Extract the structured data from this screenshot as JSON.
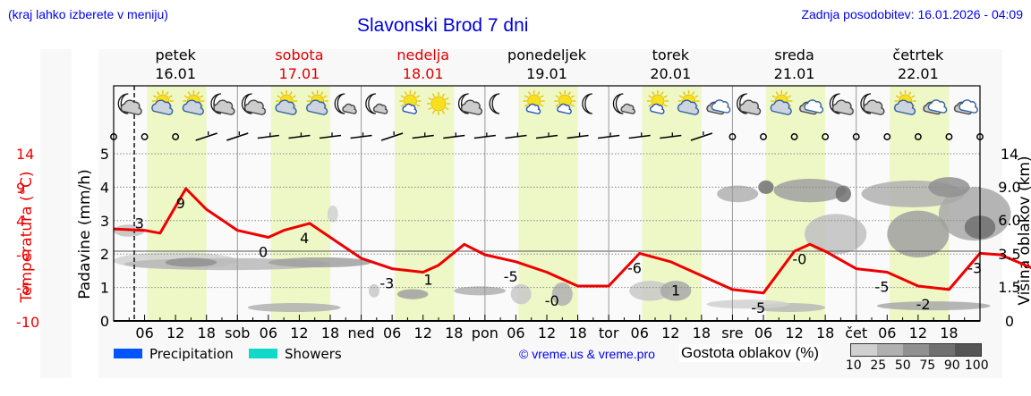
{
  "header": {
    "region_hint": "(kraj lahko izberete v meniju)",
    "title": "Slavonski Brod 7 dni",
    "last_update": "Zadnja posodobitev: 16.01.2026 - 04:09"
  },
  "days": [
    {
      "name": "petek",
      "date": "16.01",
      "weekend": false,
      "short": ""
    },
    {
      "name": "sobota",
      "date": "17.01",
      "weekend": true,
      "short": "sob"
    },
    {
      "name": "nedelja",
      "date": "18.01",
      "weekend": true,
      "short": "ned"
    },
    {
      "name": "ponedeljek",
      "date": "19.01",
      "weekend": false,
      "short": "pon"
    },
    {
      "name": "torek",
      "date": "20.01",
      "weekend": false,
      "short": "tor"
    },
    {
      "name": "sreda",
      "date": "21.01",
      "weekend": false,
      "short": "sre"
    },
    {
      "name": "četrtek",
      "date": "22.01",
      "weekend": false,
      "short": "čet"
    }
  ],
  "axes": {
    "left_temp_label": "Temperatura (°C)",
    "left_temp_ticks": [
      "14",
      "9",
      "4",
      "-0",
      "-5",
      "-10"
    ],
    "left_precip_label": "Padavine (mm/h)",
    "left_precip_ticks": [
      "5",
      "4",
      "3",
      "2",
      "1",
      "0"
    ],
    "right_label": "Višina oblakov (km)",
    "right_ticks": [
      "14",
      "9.0",
      "6.0",
      "3.5",
      "1.5",
      "0"
    ],
    "x_hour_ticks": [
      "06",
      "12",
      "18"
    ]
  },
  "weather_icons": [
    "moon-cloud",
    "sun-cloud",
    "sun-cloud",
    "moon-cloud",
    "moon-cloud",
    "sun-cloud",
    "sun-cloud",
    "moon-cloud-small",
    "moon-cloud-small",
    "sun-small-cloud",
    "sun",
    "moon-cloud",
    "moon",
    "sun-small-cloud",
    "sun-small-cloud",
    "moon",
    "moon-cloud-small",
    "sun-small-cloud",
    "sun-cloud",
    "cloud-white",
    "moon-cloud",
    "sun-cloud",
    "cloud-white",
    "moon-cloud",
    "moon-cloud",
    "sun-cloud",
    "cloud-white",
    "cloud-white"
  ],
  "legend": {
    "precipitation_label": "Precipitation",
    "precipitation_color": "#0055ff",
    "showers_label": "Showers",
    "showers_color": "#11d9c9",
    "copyright": "© vreme.us & vreme.pro",
    "cloud_density_label": "Gostota oblakov (%)",
    "cloud_density_ticks": [
      "10",
      "25",
      "50",
      "75",
      "90",
      "100"
    ],
    "cloud_density_colors": [
      "#d0d0d0",
      "#b0b0b0",
      "#909090",
      "#707070",
      "#555555"
    ]
  },
  "colors": {
    "temperature_line": "#ee0000",
    "daylight_band": "#eef7c6",
    "header_link": "#0000ee",
    "weekend_day": "#dd0000"
  },
  "chart_data": {
    "type": "line",
    "title": "Slavonski Brod 7 dni",
    "xlabel": "",
    "ylabel": "Temperatura (°C)",
    "ylim": [
      -10,
      14
    ],
    "x_unit": "hours from 16.01 00:00",
    "current_time_marker_hour": 4,
    "series": [
      {
        "name": "Temperatura (°C)",
        "x": [
          0,
          6,
          9,
          14,
          18,
          24,
          30,
          33,
          38,
          42,
          48,
          54,
          60,
          63,
          68,
          72,
          78,
          84,
          90,
          96,
          102,
          108,
          114,
          120,
          126,
          132,
          135,
          138,
          144,
          150,
          156,
          162,
          168,
          172,
          180,
          186,
          192,
          198,
          204,
          210,
          216,
          222,
          228,
          235
        ],
        "values": [
          3.2,
          3,
          2.6,
          9,
          6,
          3,
          2,
          3,
          4,
          2,
          -1,
          -2.5,
          -3,
          -2,
          1,
          -0.5,
          -1.5,
          -3,
          -5,
          -5,
          -0.3,
          -1.5,
          -3.5,
          -5.5,
          -6,
          0,
          1,
          0,
          -2.5,
          -3,
          -5,
          -5.5,
          -0.3,
          -0.5,
          -3,
          -3.8,
          -3.8,
          -4,
          -5,
          -3.5,
          -1.8,
          -1.8,
          -3,
          -3
        ]
      }
    ],
    "annotations": [
      {
        "x": 5,
        "label": "3"
      },
      {
        "x": 13,
        "label": "9"
      },
      {
        "x": 29,
        "label": "0"
      },
      {
        "x": 37,
        "label": "4"
      },
      {
        "x": 53,
        "label": "-3"
      },
      {
        "x": 61,
        "label": "1"
      },
      {
        "x": 77,
        "label": "-5"
      },
      {
        "x": 85,
        "label": "-0"
      },
      {
        "x": 101,
        "label": "-6"
      },
      {
        "x": 109,
        "label": "1"
      },
      {
        "x": 125,
        "label": "-5"
      },
      {
        "x": 133,
        "label": "-0"
      },
      {
        "x": 149,
        "label": "-5"
      },
      {
        "x": 157,
        "label": "-2"
      },
      {
        "x": 167,
        "label": "-3"
      }
    ],
    "precipitation_mm_h": {
      "ylim": [
        0,
        5
      ],
      "values": "none visible"
    },
    "cloud_height_km_ticks": [
      0,
      1.5,
      3.5,
      6.0,
      9.0,
      14
    ],
    "grid": true,
    "legend_position": "bottom"
  }
}
